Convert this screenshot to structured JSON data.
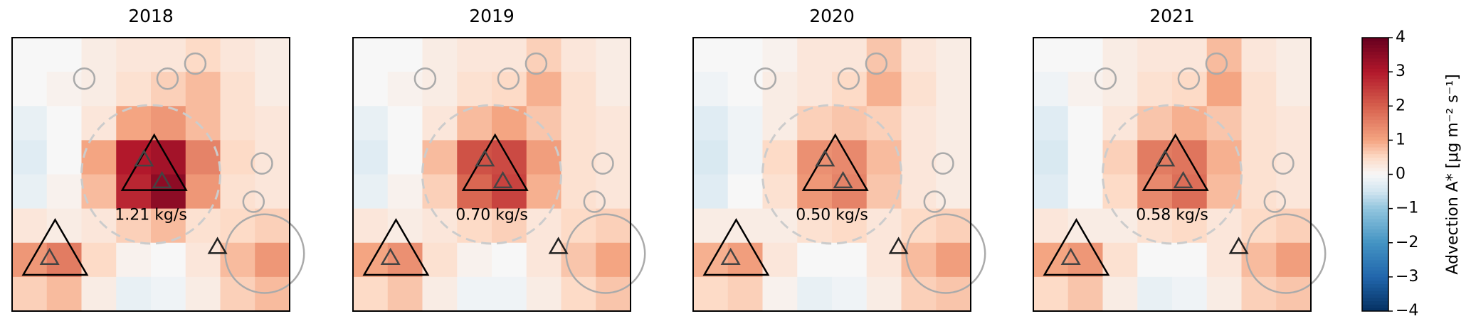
{
  "chart_data": [
    {
      "type": "heatmap",
      "title": "2018",
      "annotation": "1.21 kg/s",
      "zlim": [
        -4,
        4
      ],
      "values": [
        [
          0,
          0,
          0.2,
          0.3,
          0.3,
          0.5,
          0.3,
          0.2
        ],
        [
          0,
          0.1,
          0.2,
          0.4,
          0.6,
          0.8,
          0.4,
          0.2
        ],
        [
          -0.2,
          0,
          0.3,
          1.0,
          1.2,
          0.8,
          0.4,
          0.3
        ],
        [
          -0.3,
          0,
          1.0,
          3.0,
          3.2,
          1.5,
          0.5,
          0.3
        ],
        [
          -0.2,
          0.1,
          0.8,
          2.8,
          3.5,
          1.2,
          0.4,
          0.3
        ],
        [
          0.3,
          0.2,
          0.3,
          0.6,
          0.8,
          0.4,
          0.5,
          0.6
        ],
        [
          1.2,
          1.6,
          0.5,
          0.1,
          0,
          0.3,
          0.8,
          1.2
        ],
        [
          0.6,
          0.8,
          0.2,
          -0.2,
          -0.1,
          0.2,
          0.6,
          0.8
        ]
      ]
    },
    {
      "type": "heatmap",
      "title": "2019",
      "annotation": "0.70 kg/s",
      "zlim": [
        -4,
        4
      ],
      "values": [
        [
          0,
          0,
          0.2,
          0.3,
          0.3,
          0.6,
          0.3,
          0.2
        ],
        [
          0,
          0.1,
          0.2,
          0.4,
          0.5,
          0.9,
          0.4,
          0.2
        ],
        [
          -0.2,
          0,
          0.3,
          0.8,
          1.0,
          0.7,
          0.4,
          0.3
        ],
        [
          -0.3,
          0,
          0.8,
          2.2,
          2.3,
          1.1,
          0.4,
          0.3
        ],
        [
          -0.2,
          0.1,
          0.6,
          1.9,
          2.4,
          0.9,
          0.4,
          0.3
        ],
        [
          0.3,
          0.2,
          0.3,
          0.5,
          0.6,
          0.3,
          0.5,
          0.6
        ],
        [
          1.0,
          1.3,
          0.4,
          0.1,
          0,
          0.3,
          0.7,
          1.0
        ],
        [
          0.5,
          0.7,
          0.2,
          -0.1,
          -0.1,
          0.2,
          0.5,
          0.7
        ]
      ]
    },
    {
      "type": "heatmap",
      "title": "2020",
      "annotation": "0.50 kg/s",
      "zlim": [
        -4,
        4
      ],
      "values": [
        [
          0,
          0,
          0.1,
          0.3,
          0.3,
          0.7,
          0.3,
          0.2
        ],
        [
          -0.1,
          0,
          0.2,
          0.3,
          0.5,
          0.9,
          0.4,
          0.2
        ],
        [
          -0.3,
          -0.1,
          0.2,
          0.6,
          0.7,
          0.6,
          0.3,
          0.2
        ],
        [
          -0.4,
          -0.1,
          0.5,
          1.3,
          1.4,
          0.8,
          0.3,
          0.2
        ],
        [
          -0.3,
          0,
          0.4,
          1.2,
          1.5,
          0.7,
          0.3,
          0.2
        ],
        [
          0.2,
          0.2,
          0.2,
          0.4,
          0.5,
          0.3,
          0.5,
          0.6
        ],
        [
          0.9,
          1.1,
          0.3,
          0,
          0,
          0.3,
          0.8,
          1.1
        ],
        [
          0.5,
          0.6,
          0.1,
          -0.2,
          -0.1,
          0.2,
          0.6,
          0.7
        ]
      ]
    },
    {
      "type": "heatmap",
      "title": "2021",
      "annotation": "0.58 kg/s",
      "zlim": [
        -4,
        4
      ],
      "values": [
        [
          0,
          0,
          0.2,
          0.3,
          0.3,
          0.8,
          0.3,
          0.2
        ],
        [
          -0.1,
          0.1,
          0.2,
          0.4,
          0.5,
          1.0,
          0.4,
          0.2
        ],
        [
          -0.3,
          0,
          0.3,
          0.7,
          0.9,
          0.7,
          0.4,
          0.3
        ],
        [
          -0.4,
          0,
          0.6,
          1.6,
          1.7,
          0.9,
          0.4,
          0.3
        ],
        [
          -0.3,
          0,
          0.5,
          1.4,
          1.8,
          0.8,
          0.4,
          0.3
        ],
        [
          0.3,
          0.2,
          0.2,
          0.4,
          0.5,
          0.3,
          0.5,
          0.6
        ],
        [
          1.0,
          1.2,
          0.4,
          0,
          0,
          0.3,
          0.8,
          1.1
        ],
        [
          0.5,
          0.7,
          0.2,
          -0.2,
          -0.1,
          0.2,
          0.6,
          0.7
        ]
      ]
    }
  ],
  "colorbar": {
    "label": "Advection A* [μg m⁻² s⁻¹]",
    "lim": [
      -4,
      4
    ],
    "ticks": [
      {
        "value": -4,
        "label": "−4"
      },
      {
        "value": -3,
        "label": "−3"
      },
      {
        "value": -2,
        "label": "−2"
      },
      {
        "value": -1,
        "label": "−1"
      },
      0,
      1,
      2,
      3,
      4
    ]
  }
}
